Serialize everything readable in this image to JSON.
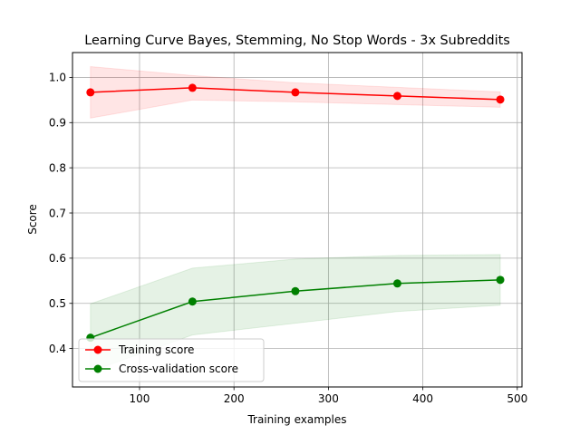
{
  "chart_data": {
    "type": "line",
    "title": "Learning Curve Bayes, Stemming, No Stop Words - 3x Subreddits",
    "xlabel": "Training examples",
    "ylabel": "Score",
    "xlim": [
      29,
      505
    ],
    "ylim": [
      0.315,
      1.055
    ],
    "x_ticks": [
      100,
      200,
      300,
      400,
      500
    ],
    "y_ticks": [
      0.4,
      0.5,
      0.6,
      0.7,
      0.8,
      0.9,
      1.0
    ],
    "x_tick_labels": [
      "100",
      "200",
      "300",
      "400",
      "500"
    ],
    "y_tick_labels": [
      "0.4",
      "0.5",
      "0.6",
      "0.7",
      "0.8",
      "0.9",
      "1.0"
    ],
    "grid": true,
    "legend_position": "lower-left",
    "x": [
      48,
      156,
      265,
      373,
      482
    ],
    "series": [
      {
        "name": "Training score",
        "color": "#ff0000",
        "band_color": "#ff0000",
        "values": [
          0.967,
          0.977,
          0.967,
          0.959,
          0.951
        ],
        "band_lower": [
          0.91,
          0.95,
          0.946,
          0.94,
          0.934
        ],
        "band_upper": [
          1.024,
          1.004,
          0.988,
          0.978,
          0.968
        ]
      },
      {
        "name": "Cross-validation score",
        "color": "#008000",
        "band_color": "#008000",
        "values": [
          0.424,
          0.504,
          0.527,
          0.544,
          0.552
        ],
        "band_lower": [
          0.349,
          0.43,
          0.456,
          0.482,
          0.496
        ],
        "band_upper": [
          0.499,
          0.578,
          0.598,
          0.606,
          0.608
        ]
      }
    ]
  }
}
